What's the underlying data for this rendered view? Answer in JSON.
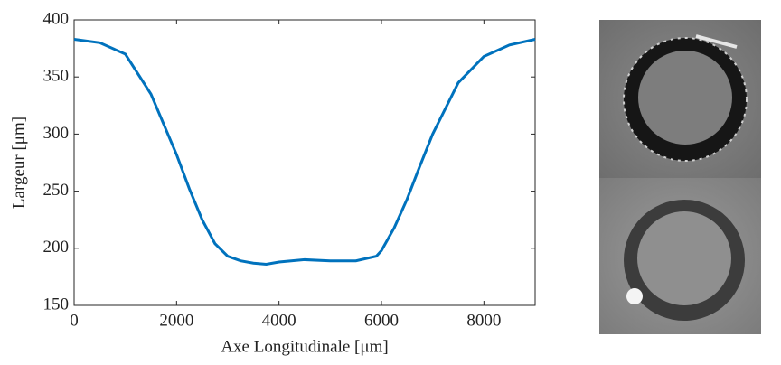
{
  "chart_data": {
    "type": "line",
    "xlabel": "Axe Longitudinale [μm]",
    "ylabel": "Largeur [μm]",
    "x": [
      0,
      500,
      1000,
      1500,
      2000,
      2250,
      2500,
      2750,
      3000,
      3250,
      3500,
      3750,
      4000,
      4500,
      5000,
      5500,
      5900,
      6000,
      6250,
      6500,
      6750,
      7000,
      7500,
      8000,
      8500,
      9000
    ],
    "series": [
      {
        "color": "#0072bd",
        "values": [
          383,
          380,
          370,
          335,
          282,
          252,
          225,
          204,
          193,
          189,
          187,
          186,
          188,
          190,
          189,
          189,
          193,
          198,
          218,
          243,
          272,
          300,
          345,
          368,
          378,
          383
        ]
      }
    ],
    "xlim": [
      0,
      9000
    ],
    "xticks": [
      0,
      2000,
      4000,
      6000,
      8000
    ],
    "ylim": [
      150,
      400
    ],
    "yticks": [
      150,
      200,
      250,
      300,
      350,
      400
    ]
  }
}
